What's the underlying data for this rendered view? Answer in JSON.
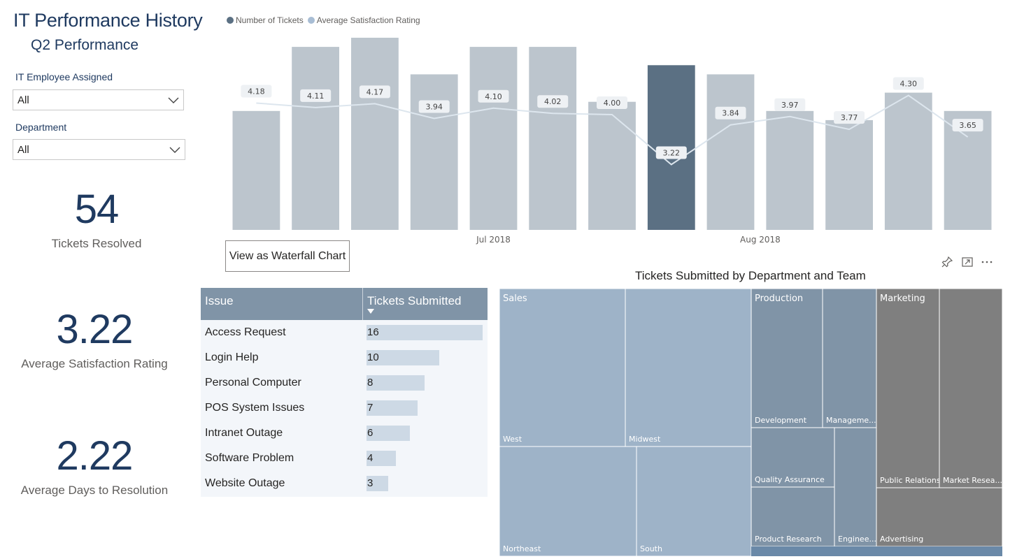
{
  "header": {
    "title": "IT Performance History",
    "subtitle": "Q2 Performance"
  },
  "slicers": [
    {
      "label": "IT Employee Assigned",
      "value": "All",
      "icon": "chevron-down-icon"
    },
    {
      "label": "Department",
      "value": "All",
      "icon": "chevron-down-icon"
    }
  ],
  "kpis": [
    {
      "value": "54",
      "label": "Tickets Resolved"
    },
    {
      "value": "3.22",
      "label": "Average Satisfaction Rating"
    },
    {
      "value": "2.22",
      "label": "Average Days to Resolution"
    }
  ],
  "waterfall_button": "View as Waterfall Chart",
  "visual_header_icons": [
    "pin-icon",
    "focus-mode-icon",
    "more-options-icon"
  ],
  "colors": {
    "title": "#1f3a60",
    "bar": "#bcc5cd",
    "bar_selected": "#5b7083",
    "line": "#dde6ee",
    "legend_tickets": "#5b7083",
    "legend_rating": "#a8bdd4",
    "table_header": "#8094a7",
    "data_bar": "#cdd9e5",
    "sales": "#9eb3c8",
    "production": "#8094a7",
    "marketing": "#7f7f7f"
  },
  "chart_data": [
    {
      "type": "bar",
      "legend": [
        "Number of Tickets",
        "Average Satisfaction Rating"
      ],
      "legend_position": "top-left",
      "x_tick_labels": [
        "Jul 2018",
        "Aug 2018"
      ],
      "x_tick_positions": [
        4,
        8.5
      ],
      "grid": false,
      "ylim": [
        0,
        21
      ],
      "selected_index": 7,
      "series": [
        {
          "name": "Number of Tickets",
          "type": "bar",
          "values": [
            13,
            20,
            21,
            17,
            20,
            20,
            14,
            18,
            17,
            13,
            12,
            15,
            13
          ]
        },
        {
          "name": "Average Satisfaction Rating",
          "type": "line",
          "values": [
            4.18,
            4.11,
            4.17,
            3.94,
            4.1,
            4.02,
            4.0,
            3.22,
            3.84,
            3.97,
            3.77,
            4.3,
            3.65
          ],
          "labels": [
            "4.18",
            "4.11",
            "4.17",
            "3.94",
            "4.10",
            "4.02",
            "4.00",
            "3.22",
            "3.84",
            "3.97",
            "3.77",
            "4.30",
            "3.65"
          ],
          "ylim": [
            2.2,
            5.2
          ]
        }
      ]
    },
    {
      "type": "table",
      "columns": [
        "Issue",
        "Tickets Submitted"
      ],
      "sort": "Tickets Submitted descending",
      "rows": [
        {
          "issue": "Access Request",
          "tickets": 16
        },
        {
          "issue": "Login Help",
          "tickets": 10
        },
        {
          "issue": "Personal Computer",
          "tickets": 8
        },
        {
          "issue": "POS System Issues",
          "tickets": 7
        },
        {
          "issue": "Intranet Outage",
          "tickets": 6
        },
        {
          "issue": "Software Problem",
          "tickets": 4
        },
        {
          "issue": "Website Outage",
          "tickets": 3
        }
      ]
    },
    {
      "type": "treemap",
      "title": "Tickets Submitted by Department and Team",
      "groups": [
        {
          "name": "Sales",
          "color": "#9eb3c8",
          "share": 0.5,
          "children": [
            {
              "name": "West",
              "share": 0.124
            },
            {
              "name": "Midwest",
              "share": 0.124
            },
            {
              "name": "Northeast",
              "share": 0.134
            },
            {
              "name": "South",
              "share": 0.118
            }
          ]
        },
        {
          "name": "Production",
          "color": "#8094a7",
          "share": 0.25,
          "children": [
            {
              "name": "Development",
              "share": 0.072
            },
            {
              "name": "Manageme...",
              "share": 0.054
            },
            {
              "name": "Quality Assurance",
              "share": 0.049
            },
            {
              "name": "Product Research",
              "share": 0.049
            },
            {
              "name": "Enginee...",
              "share": 0.025
            }
          ]
        },
        {
          "name": "Marketing",
          "color": "#7f7f7f",
          "share": 0.25,
          "children": [
            {
              "name": "Public Relations",
              "share": 0.091
            },
            {
              "name": "Market Resea...",
              "share": 0.09
            },
            {
              "name": "Advertising",
              "share": 0.069
            }
          ]
        }
      ]
    }
  ]
}
